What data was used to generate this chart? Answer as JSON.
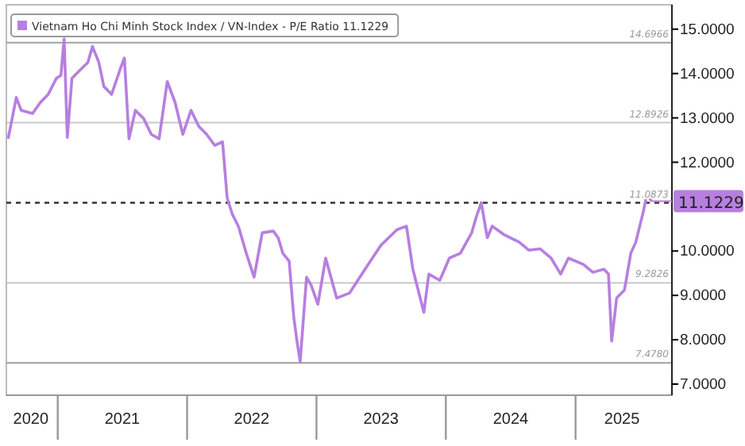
{
  "chart_data": {
    "type": "line",
    "x": [
      "2020-08-14",
      "2020-09-06",
      "2020-09-20",
      "2020-10-22",
      "2020-11-13",
      "2020-12-05",
      "2020-12-28",
      "2021-01-10",
      "2021-01-19",
      "2021-01-28",
      "2021-02-10",
      "2021-03-04",
      "2021-03-27",
      "2021-04-09",
      "2021-04-27",
      "2021-05-11",
      "2021-06-02",
      "2021-06-25",
      "2021-07-08",
      "2021-07-21",
      "2021-08-08",
      "2021-08-31",
      "2021-09-22",
      "2021-10-14",
      "2021-11-06",
      "2021-11-28",
      "2021-12-20",
      "2022-01-12",
      "2022-02-03",
      "2022-02-25",
      "2022-03-20",
      "2022-04-11",
      "2022-04-24",
      "2022-05-08",
      "2022-05-26",
      "2022-06-17",
      "2022-07-09",
      "2022-08-01",
      "2022-09-01",
      "2022-09-15",
      "2022-09-28",
      "2022-10-16",
      "2022-10-29",
      "2022-11-07",
      "2022-11-16",
      "2022-12-04",
      "2022-12-17",
      "2023-01-05",
      "2023-01-27",
      "2023-02-27",
      "2023-04-04",
      "2023-05-18",
      "2023-07-02",
      "2023-08-16",
      "2023-09-12",
      "2023-09-30",
      "2023-10-31",
      "2023-11-14",
      "2023-12-15",
      "2024-01-11",
      "2024-02-11",
      "2024-03-14",
      "2024-03-27",
      "2024-04-10",
      "2024-04-27",
      "2024-05-11",
      "2024-06-11",
      "2024-07-26",
      "2024-08-22",
      "2024-09-23",
      "2024-10-24",
      "2024-11-20",
      "2024-12-12",
      "2025-01-23",
      "2025-02-19",
      "2025-03-22",
      "2025-04-04",
      "2025-04-13",
      "2025-04-27",
      "2025-05-19",
      "2025-06-06",
      "2025-06-20",
      "2025-07-12",
      "2025-07-21",
      "2025-08-04"
    ],
    "series": [
      {
        "name": "Vietnam Ho Chi Minh Stock Index / VN-Index - P/E Ratio 11.1229",
        "color": "#b77fe0",
        "values": [
          12.53,
          13.46,
          13.17,
          13.1,
          13.35,
          13.53,
          13.89,
          13.96,
          14.78,
          12.56,
          13.89,
          14.07,
          14.25,
          14.61,
          14.25,
          13.71,
          13.53,
          14.07,
          14.35,
          12.53,
          13.17,
          12.99,
          12.63,
          12.53,
          13.82,
          13.35,
          12.63,
          13.17,
          12.81,
          12.63,
          12.38,
          12.46,
          11.2,
          10.84,
          10.55,
          9.95,
          9.41,
          10.41,
          10.45,
          10.3,
          9.95,
          9.77,
          8.51,
          7.97,
          7.5,
          9.41,
          9.23,
          8.8,
          9.84,
          8.94,
          9.05,
          9.59,
          10.13,
          10.48,
          10.56,
          9.59,
          8.62,
          9.48,
          9.34,
          9.84,
          9.95,
          10.41,
          10.77,
          11.09,
          10.3,
          10.56,
          10.38,
          10.2,
          10.02,
          10.05,
          9.84,
          9.48,
          9.84,
          9.7,
          9.52,
          9.59,
          9.48,
          7.97,
          8.94,
          9.12,
          9.95,
          10.2,
          10.91,
          11.27,
          11.1229
        ]
      }
    ],
    "xlim": [
      "2020-08-09",
      "2025-09-30"
    ],
    "ylim": [
      6.75,
      15.55
    ],
    "xticks": [
      {
        "value": "2020-10-17",
        "label": "2020"
      },
      {
        "value": "2021-07-02",
        "label": "2021"
      },
      {
        "value": "2022-07-02",
        "label": "2022"
      },
      {
        "value": "2023-07-02",
        "label": "2023"
      },
      {
        "value": "2024-07-02",
        "label": "2024"
      },
      {
        "value": "2025-05-12",
        "label": "2025"
      }
    ],
    "yticks": [
      {
        "value": 7,
        "label": "7.0000"
      },
      {
        "value": 8,
        "label": "8.0000"
      },
      {
        "value": 9,
        "label": "9.0000"
      },
      {
        "value": 10,
        "label": "10.0000"
      },
      {
        "value": 12,
        "label": "12.0000"
      },
      {
        "value": 13,
        "label": "13.0000"
      },
      {
        "value": 14,
        "label": "14.0000"
      },
      {
        "value": 15,
        "label": "15.0000"
      }
    ],
    "ref_lines": [
      {
        "axis": "y",
        "value": 14.6966,
        "label": "14.6966",
        "color": "#a0a0a0",
        "line_style": "solid"
      },
      {
        "axis": "y",
        "value": 12.8926,
        "label": "12.8926",
        "color": "#c8c8c8",
        "line_style": "solid"
      },
      {
        "axis": "y",
        "value": 11.0873,
        "label": "11.0873",
        "color": "#333333",
        "line_style": "dashed"
      },
      {
        "axis": "y",
        "value": 9.2826,
        "label": "9.2826",
        "color": "#c8c8c8",
        "line_style": "solid"
      },
      {
        "axis": "y",
        "value": 7.478,
        "label": "7.4780",
        "color": "#a0a0a0",
        "line_style": "solid"
      }
    ],
    "annotations": [
      {
        "text": "11.1229",
        "x": "2025-08-04",
        "y": 11.1229
      }
    ],
    "legend": "top left"
  }
}
